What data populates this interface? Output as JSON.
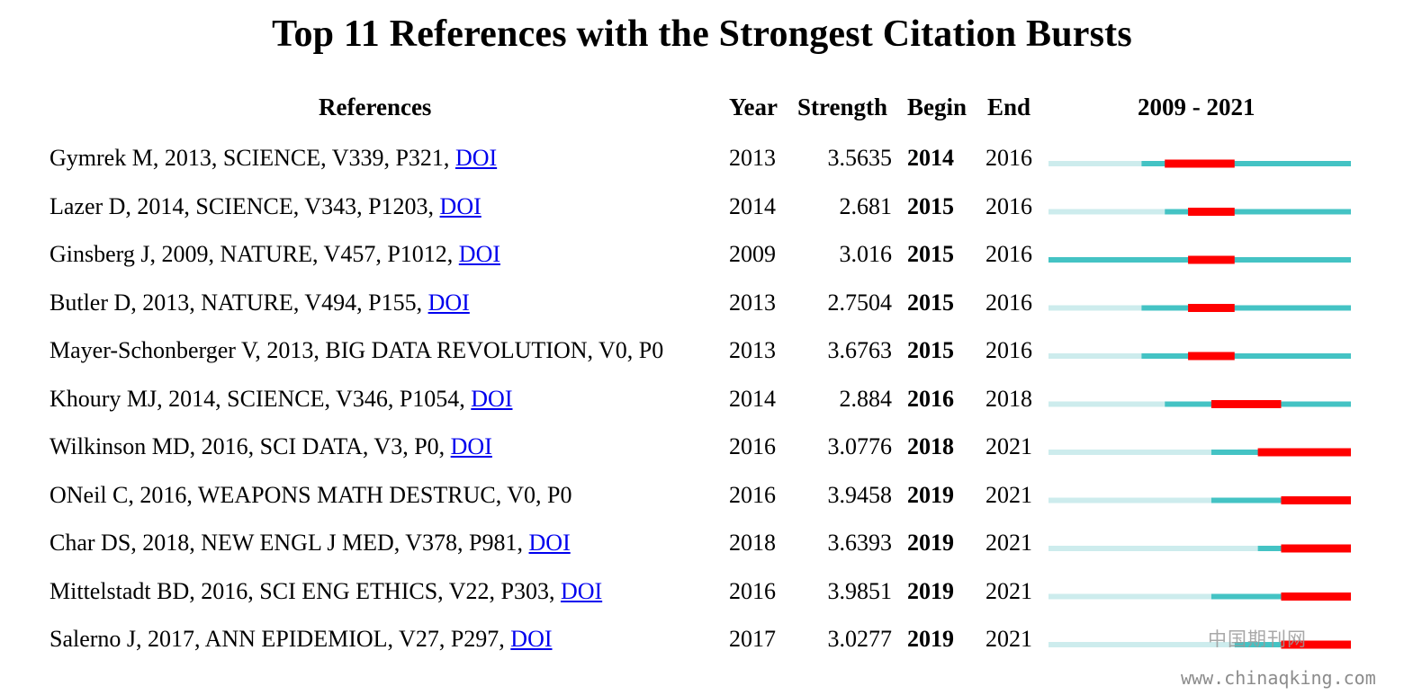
{
  "chart_data": {
    "type": "table",
    "title": "Top 11 References with the Strongest Citation Bursts",
    "columns": {
      "references": "References",
      "year": "Year",
      "strength": "Strength",
      "begin": "Begin",
      "end": "End",
      "range": "2009 - 2021"
    },
    "timeline": {
      "start": 2009,
      "end": 2021
    },
    "colors": {
      "before_publication": "#cdeced",
      "active": "#44c3c4",
      "burst": "#ff0000"
    },
    "rows": [
      {
        "reference": "Gymrek M, 2013, SCIENCE, V339, P321, ",
        "doi": "DOI",
        "year": "2013",
        "strength": "3.5635",
        "begin": "2014",
        "end": "2016"
      },
      {
        "reference": "Lazer D, 2014, SCIENCE, V343, P1203, ",
        "doi": "DOI",
        "year": "2014",
        "strength": "2.681",
        "begin": "2015",
        "end": "2016"
      },
      {
        "reference": "Ginsberg J, 2009, NATURE, V457, P1012, ",
        "doi": "DOI",
        "year": "2009",
        "strength": "3.016",
        "begin": "2015",
        "end": "2016"
      },
      {
        "reference": "Butler D, 2013, NATURE, V494, P155, ",
        "doi": "DOI",
        "year": "2013",
        "strength": "2.7504",
        "begin": "2015",
        "end": "2016"
      },
      {
        "reference": "Mayer-Schonberger V, 2013, BIG DATA REVOLUTION, V0, P0",
        "doi": "",
        "year": "2013",
        "strength": "3.6763",
        "begin": "2015",
        "end": "2016"
      },
      {
        "reference": "Khoury MJ, 2014, SCIENCE, V346, P1054, ",
        "doi": "DOI",
        "year": "2014",
        "strength": "2.884",
        "begin": "2016",
        "end": "2018"
      },
      {
        "reference": "Wilkinson MD, 2016, SCI DATA, V3, P0, ",
        "doi": "DOI",
        "year": "2016",
        "strength": "3.0776",
        "begin": "2018",
        "end": "2021"
      },
      {
        "reference": "ONeil C, 2016, WEAPONS MATH DESTRUC, V0, P0",
        "doi": "",
        "year": "2016",
        "strength": "3.9458",
        "begin": "2019",
        "end": "2021"
      },
      {
        "reference": "Char DS, 2018, NEW ENGL J MED, V378, P981, ",
        "doi": "DOI",
        "year": "2018",
        "strength": "3.6393",
        "begin": "2019",
        "end": "2021"
      },
      {
        "reference": "Mittelstadt BD, 2016, SCI ENG ETHICS, V22, P303, ",
        "doi": "DOI",
        "year": "2016",
        "strength": "3.9851",
        "begin": "2019",
        "end": "2021"
      },
      {
        "reference": "Salerno J, 2017, ANN EPIDEMIOL, V27, P297, ",
        "doi": "DOI",
        "year": "2017",
        "strength": "3.0277",
        "begin": "2019",
        "end": "2021"
      }
    ]
  },
  "watermark": {
    "site_name": "中国期刊网",
    "url": "www.chinaqking.com"
  }
}
